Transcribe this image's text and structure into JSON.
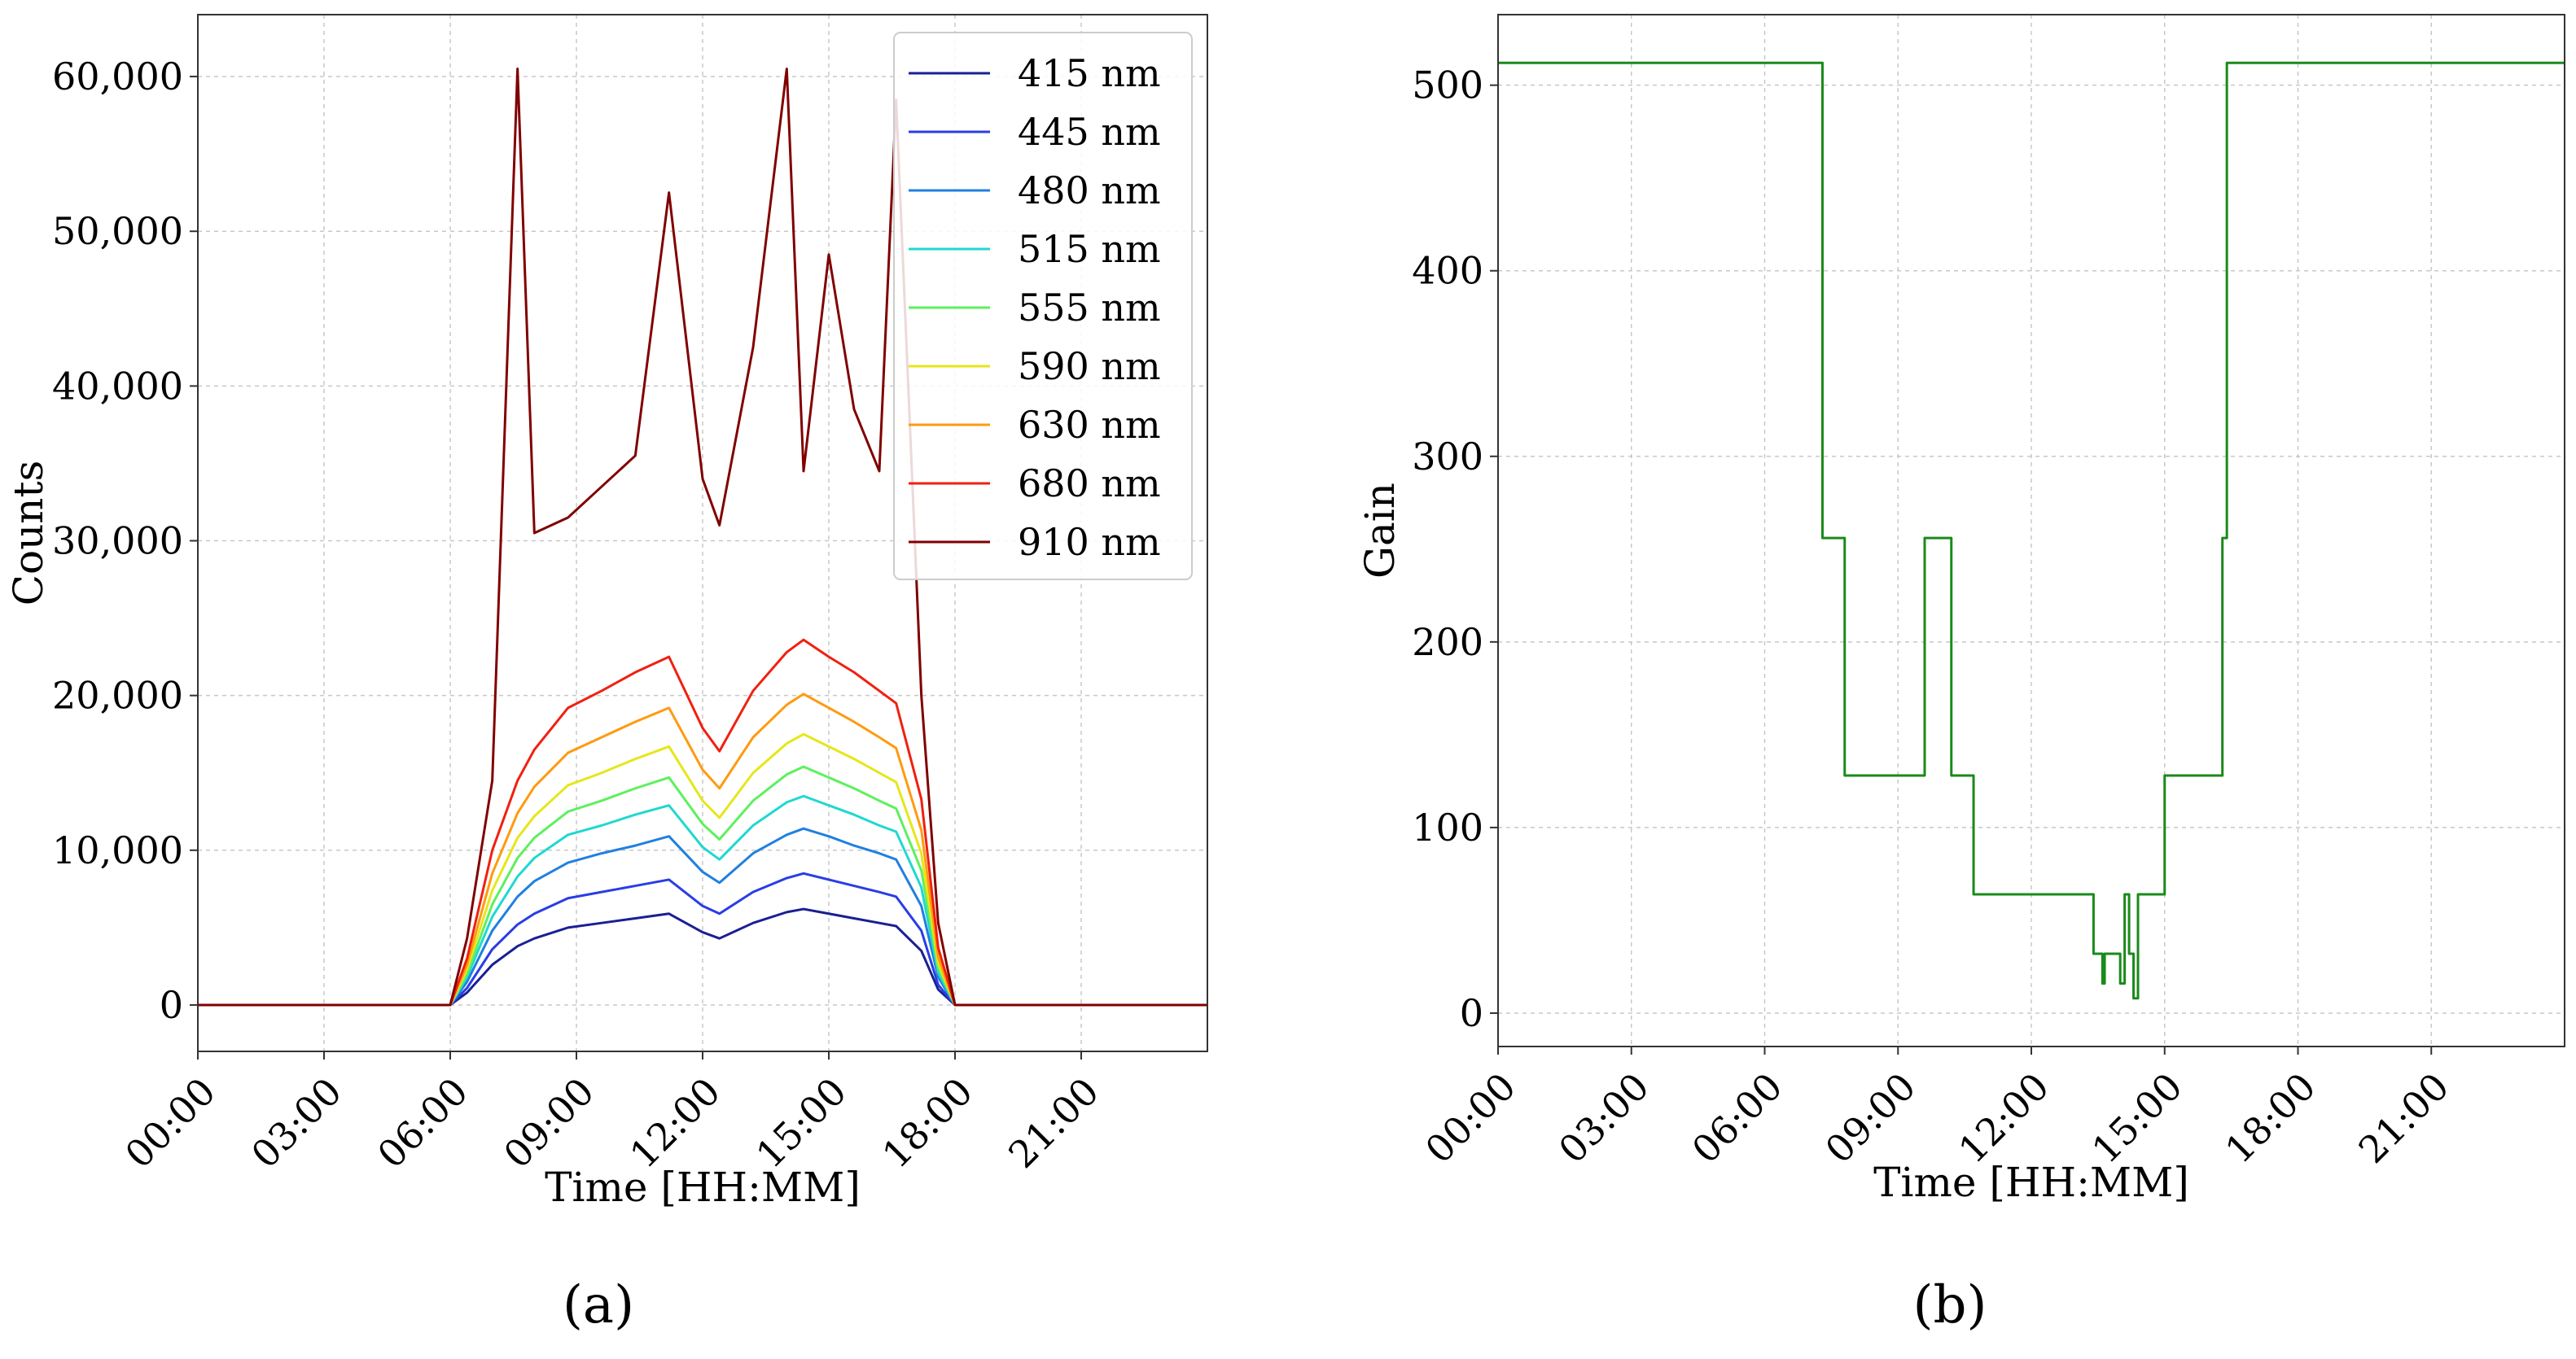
{
  "panels": [
    {
      "id": "a",
      "label": "(a)"
    },
    {
      "id": "b",
      "label": "(b)"
    }
  ],
  "chart_data": [
    {
      "type": "line",
      "xlabel": "Time [HH:MM]",
      "ylabel": "Counts",
      "xlim": [
        0,
        24
      ],
      "ylim": [
        -3000,
        64000
      ],
      "xticks": [
        0,
        3,
        6,
        9,
        12,
        15,
        18,
        21
      ],
      "xtick_labels": [
        "00:00",
        "03:00",
        "06:00",
        "09:00",
        "12:00",
        "15:00",
        "18:00",
        "21:00"
      ],
      "yticks": [
        0,
        10000,
        20000,
        30000,
        40000,
        50000,
        60000
      ],
      "ytick_labels": [
        "0",
        "10,000",
        "20,000",
        "30,000",
        "40,000",
        "50,000",
        "60,000"
      ],
      "grid": true,
      "legend_position": "top-right",
      "x": [
        0,
        5.6,
        6.0,
        6.4,
        7.0,
        7.6,
        8.0,
        8.8,
        9.6,
        10.4,
        11.2,
        12.0,
        12.4,
        13.2,
        14.0,
        14.4,
        15.0,
        15.6,
        16.2,
        16.6,
        17.2,
        17.6,
        18.0,
        24
      ],
      "series": [
        {
          "name": "415 nm",
          "color": "#1a1f94",
          "values": [
            0,
            0,
            0,
            800,
            2600,
            3800,
            4300,
            5000,
            5300,
            5600,
            5900,
            4700,
            4300,
            5300,
            6000,
            6200,
            5900,
            5600,
            5300,
            5100,
            3500,
            1000,
            0,
            0
          ]
        },
        {
          "name": "445 nm",
          "color": "#2a3de6",
          "values": [
            0,
            0,
            0,
            1100,
            3600,
            5200,
            5900,
            6900,
            7300,
            7700,
            8100,
            6400,
            5900,
            7300,
            8200,
            8500,
            8100,
            7700,
            7300,
            7000,
            4800,
            1300,
            0,
            0
          ]
        },
        {
          "name": "480 nm",
          "color": "#2080e0",
          "values": [
            0,
            0,
            0,
            1500,
            4800,
            7000,
            8000,
            9200,
            9800,
            10300,
            10900,
            8600,
            7900,
            9800,
            11000,
            11400,
            10900,
            10300,
            9800,
            9400,
            6400,
            1800,
            0,
            0
          ]
        },
        {
          "name": "515 nm",
          "color": "#20d8d0",
          "values": [
            0,
            0,
            0,
            1800,
            5700,
            8300,
            9500,
            11000,
            11600,
            12300,
            12900,
            10200,
            9400,
            11600,
            13100,
            13500,
            12900,
            12300,
            11600,
            11200,
            7600,
            2100,
            0,
            0
          ]
        },
        {
          "name": "555 nm",
          "color": "#5ef05e",
          "values": [
            0,
            0,
            0,
            2000,
            6500,
            9500,
            10800,
            12500,
            13200,
            14000,
            14700,
            11700,
            10700,
            13200,
            14900,
            15400,
            14700,
            14000,
            13200,
            12700,
            8700,
            2400,
            0,
            0
          ]
        },
        {
          "name": "590 nm",
          "color": "#e6e61a",
          "values": [
            0,
            0,
            0,
            2300,
            7400,
            10800,
            12200,
            14200,
            15000,
            15900,
            16700,
            13200,
            12100,
            15000,
            16900,
            17500,
            16700,
            15900,
            15000,
            14400,
            9800,
            2700,
            0,
            0
          ]
        },
        {
          "name": "630 nm",
          "color": "#ff9a10",
          "values": [
            0,
            0,
            0,
            2600,
            8500,
            12400,
            14100,
            16300,
            17300,
            18300,
            19200,
            15200,
            14000,
            17300,
            19400,
            20100,
            19200,
            18300,
            17300,
            16600,
            11300,
            3100,
            0,
            0
          ]
        },
        {
          "name": "680 nm",
          "color": "#f02010",
          "values": [
            0,
            0,
            0,
            3000,
            10000,
            14500,
            16500,
            19200,
            20300,
            21500,
            22500,
            17900,
            16400,
            20300,
            22800,
            23600,
            22500,
            21500,
            20300,
            19500,
            13300,
            3700,
            0,
            0
          ]
        },
        {
          "name": "910 nm",
          "color": "#800000",
          "values": [
            0,
            0,
            0,
            4300,
            14500,
            60500,
            30500,
            31500,
            33500,
            35500,
            52500,
            34000,
            31000,
            42500,
            60500,
            34500,
            48500,
            38500,
            34500,
            58500,
            20000,
            5300,
            0,
            0
          ]
        }
      ]
    },
    {
      "type": "line",
      "xlabel": "Time [HH:MM]",
      "ylabel": "Gain",
      "xlim": [
        0,
        24
      ],
      "ylim": [
        -18,
        538
      ],
      "xticks": [
        0,
        3,
        6,
        9,
        12,
        15,
        18,
        21
      ],
      "xtick_labels": [
        "00:00",
        "03:00",
        "06:00",
        "09:00",
        "12:00",
        "15:00",
        "18:00",
        "21:00"
      ],
      "yticks": [
        0,
        100,
        200,
        300,
        400,
        500
      ],
      "ytick_labels": [
        "0",
        "100",
        "200",
        "300",
        "400",
        "500"
      ],
      "grid": true,
      "step": true,
      "series": [
        {
          "color": "#1a8a1a",
          "x": [
            0,
            7.3,
            7.8,
            9.6,
            10.2,
            10.7,
            13.4,
            13.6,
            13.65,
            13.7,
            14.0,
            14.1,
            14.2,
            14.3,
            14.4,
            15.0,
            16.3,
            16.4,
            24
          ],
          "values": [
            512,
            256,
            128,
            256,
            128,
            64,
            32,
            16,
            32,
            32,
            16,
            64,
            32,
            8,
            64,
            128,
            256,
            512,
            512
          ]
        }
      ]
    }
  ]
}
